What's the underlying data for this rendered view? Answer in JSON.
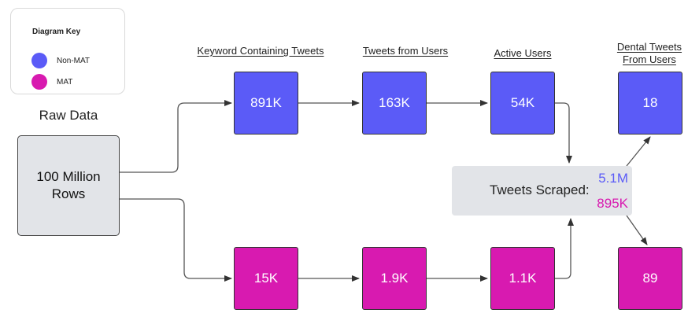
{
  "legend": {
    "title": "Diagram Key",
    "items": [
      {
        "label": "Non-MAT",
        "color": "#5b5bf7"
      },
      {
        "label": "MAT",
        "color": "#d81ab0"
      }
    ]
  },
  "raw": {
    "label": "Raw Data",
    "line1": "100 Million",
    "line2": "Rows"
  },
  "headers": {
    "keyword": "Keyword Containing Tweets",
    "from_users": "Tweets from Users",
    "active": "Active Users",
    "dental_line1": "Dental Tweets",
    "dental_line2": "From Users"
  },
  "non_mat": {
    "keyword": "891K",
    "from_users": "163K",
    "active": "54K",
    "dental": "18"
  },
  "mat": {
    "keyword": "15K",
    "from_users": "1.9K",
    "active": "1.1K",
    "dental": "89"
  },
  "scraped": {
    "label": "Tweets Scraped:",
    "non_mat": "5.1M",
    "mat": "895K"
  },
  "colors": {
    "non_mat": "#5b5bf7",
    "mat": "#d81ab0",
    "neutral_box": "#e2e4e8"
  }
}
